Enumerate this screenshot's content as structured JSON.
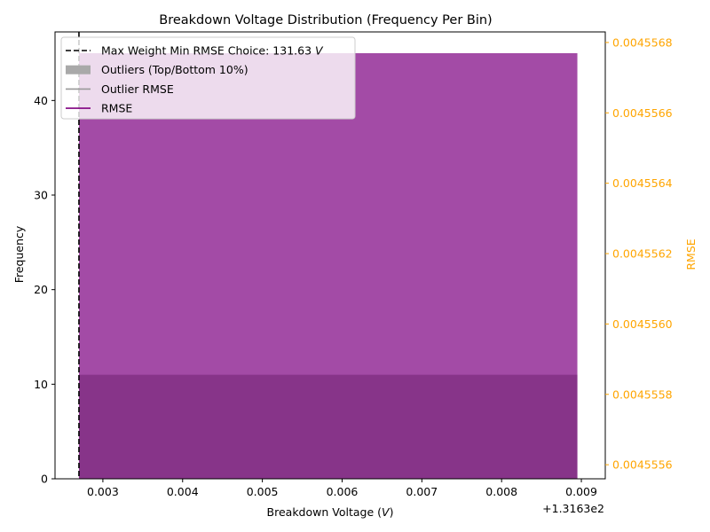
{
  "chart_data": {
    "type": "bar",
    "title": "Breakdown Voltage Distribution (Frequency Per Bin)",
    "xlabel": "Breakdown Voltage (V)",
    "ylabel": "Frequency",
    "y2label": "RMSE",
    "x_offset_label": "+1.3163e2",
    "xlim": [
      131.6324,
      131.6393
    ],
    "ylim": [
      0,
      47.25
    ],
    "y2lim": [
      0.00455556,
      0.00455683
    ],
    "x_ticks": [
      131.633,
      131.634,
      131.635,
      131.636,
      131.637,
      131.638,
      131.639
    ],
    "x_tick_labels": [
      "0.003",
      "0.004",
      "0.005",
      "0.006",
      "0.007",
      "0.008",
      "0.009"
    ],
    "y_ticks": [
      0,
      10,
      20,
      30,
      40
    ],
    "y_tick_labels": [
      "0",
      "10",
      "20",
      "30",
      "40"
    ],
    "y2_ticks": [
      0.0045556,
      0.0045558,
      0.004556,
      0.0045562,
      0.0045564,
      0.0045566,
      0.0045568
    ],
    "y2_tick_labels": [
      "0.0045556",
      "0.0045558",
      "0.0045560",
      "0.0045562",
      "0.0045564",
      "0.0045566",
      "0.0045568"
    ],
    "bars": [
      {
        "series": "frequency",
        "x_start": 131.6327,
        "x_end": 131.63895,
        "value": 45,
        "color": "#a34ba6"
      },
      {
        "series": "outliers",
        "x_start": 131.6327,
        "x_end": 131.63895,
        "value": 11,
        "color": "#873489"
      }
    ],
    "vline": {
      "x": 131.6327,
      "color": "#000000",
      "style": "dashed"
    },
    "legend_position": "top-left",
    "legend": [
      {
        "label": "Max Weight Min RMSE Choice: 131.63 V",
        "kind": "dashed-line",
        "color": "#000000"
      },
      {
        "label": "Outliers (Top/Bottom 10%)",
        "kind": "patch",
        "color": "#a9a9a9"
      },
      {
        "label": "Outlier RMSE",
        "kind": "line",
        "color": "#999999"
      },
      {
        "label": "RMSE",
        "kind": "line",
        "color": "#800080"
      }
    ],
    "right_axis_color": "#ffa500",
    "grid": false
  }
}
